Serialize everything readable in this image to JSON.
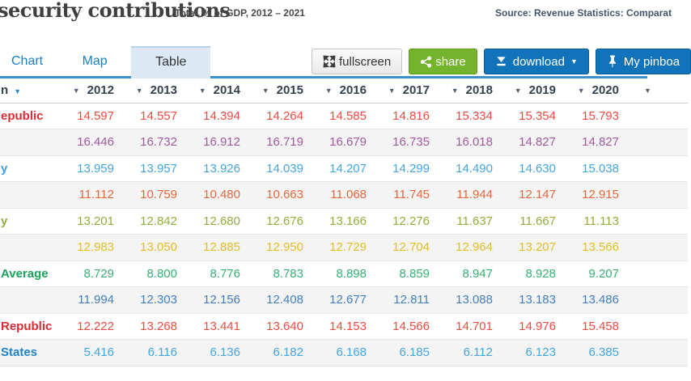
{
  "header": {
    "title": "security contributions",
    "subtitle": "Total, % of GDP, 2012 – 2021",
    "source": "Source: Revenue Statistics: Comparat"
  },
  "tabs": {
    "chart": "Chart",
    "map": "Map",
    "table": "Table",
    "active": "Table"
  },
  "buttons": {
    "fullscreen": "fullscreen",
    "share": "share",
    "download": "download",
    "pinboard": "My pinboa"
  },
  "colors": {
    "tab_link_blue": "#1a7ec2",
    "active_tab_bg": "#dce9f5",
    "tab_underline_blue": "#3c92d1",
    "share_green": "#74b42c",
    "button_blue": "#1173b9",
    "header_text": "#35414e"
  },
  "table": {
    "location_header_fragment": "n",
    "years": [
      "2012",
      "2013",
      "2014",
      "2015",
      "2016",
      "2017",
      "2018",
      "2019",
      "2020"
    ],
    "rows": [
      {
        "label": "epublic",
        "label_color": "#d92d33",
        "value_color": "#ee4b42",
        "values": [
          "14.597",
          "14.557",
          "14.394",
          "14.264",
          "14.585",
          "14.816",
          "15.334",
          "15.354",
          "15.793"
        ]
      },
      {
        "label": "",
        "label_color": "#a05a9e",
        "value_color": "#a05a9e",
        "values": [
          "16.446",
          "16.732",
          "16.912",
          "16.719",
          "16.679",
          "16.735",
          "16.018",
          "14.827",
          "14.827"
        ]
      },
      {
        "label": "y",
        "label_color": "#3ba0dd",
        "value_color": "#45a5de",
        "values": [
          "13.959",
          "13.957",
          "13.926",
          "14.039",
          "14.207",
          "14.299",
          "14.490",
          "14.630",
          "15.038"
        ]
      },
      {
        "label": "",
        "label_color": "#e4683c",
        "value_color": "#e4683c",
        "values": [
          "11.112",
          "10.759",
          "10.480",
          "10.663",
          "11.068",
          "11.745",
          "11.944",
          "12.147",
          "12.915"
        ]
      },
      {
        "label": "y",
        "label_color": "#93ad3c",
        "value_color": "#93ad3c",
        "values": [
          "13.201",
          "12.842",
          "12.680",
          "12.676",
          "13.166",
          "12.276",
          "11.637",
          "11.667",
          "11.113"
        ]
      },
      {
        "label": "",
        "label_color": "#e2be28",
        "value_color": "#e2be28",
        "values": [
          "12.983",
          "13.050",
          "12.885",
          "12.950",
          "12.729",
          "12.704",
          "12.964",
          "13.207",
          "13.566"
        ]
      },
      {
        "label": "Average",
        "label_color": "#1da25d",
        "value_color": "#36b173",
        "values": [
          "8.729",
          "8.800",
          "8.776",
          "8.783",
          "8.898",
          "8.859",
          "8.947",
          "8.928",
          "9.207"
        ]
      },
      {
        "label": "",
        "label_color": "#417fc0",
        "value_color": "#417fc0",
        "values": [
          "11.994",
          "12.303",
          "12.156",
          "12.408",
          "12.677",
          "12.811",
          "13.088",
          "13.183",
          "13.486"
        ]
      },
      {
        "label": "Republic",
        "label_color": "#d92d33",
        "value_color": "#ee4b42",
        "values": [
          "12.222",
          "13.268",
          "13.441",
          "13.640",
          "14.153",
          "14.566",
          "14.701",
          "14.976",
          "15.458"
        ]
      },
      {
        "label": "States",
        "label_color": "#1f83c6",
        "value_color": "#45a5de",
        "values": [
          "5.416",
          "6.116",
          "6.136",
          "6.182",
          "6.168",
          "6.185",
          "6.112",
          "6.123",
          "6.385"
        ]
      }
    ]
  }
}
